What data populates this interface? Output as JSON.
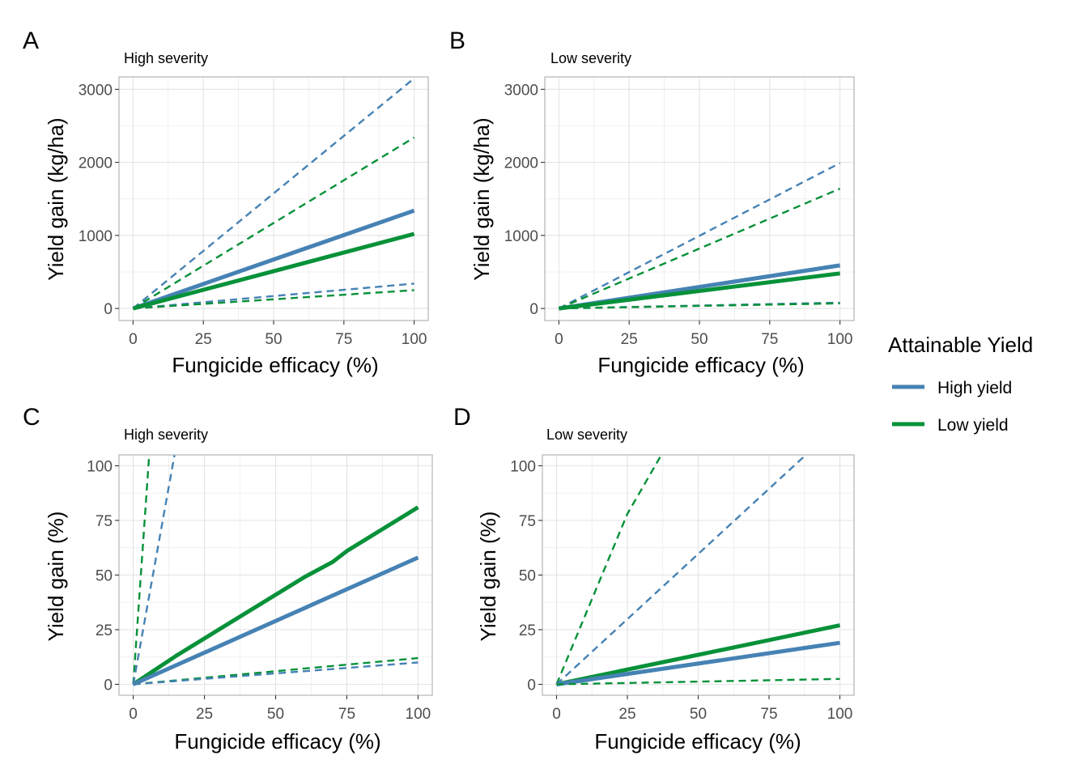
{
  "colors": {
    "high_yield": "#4682b4",
    "low_yield": "#079139",
    "grid": "#e3e3e3",
    "border": "#b3b3b3"
  },
  "legend": {
    "title": "Attainable Yield",
    "items": [
      {
        "label": "High yield",
        "color": "#4682b4"
      },
      {
        "label": "Low yield",
        "color": "#079139"
      }
    ]
  },
  "chart_data": [
    {
      "type": "line",
      "tag": "A",
      "subtitle": "High severity",
      "xlabel": "Fungicide efficacy (%)",
      "ylabel": "Yield gain (kg/ha)",
      "xlim": [
        -5,
        105
      ],
      "ylim": [
        -165,
        3170
      ],
      "xticks": [
        0,
        25,
        50,
        75,
        100
      ],
      "yticks": [
        0,
        1000,
        2000,
        3000
      ],
      "grid": true,
      "series": [
        {
          "group": "High yield",
          "style": "solid",
          "x": [
            0,
            100
          ],
          "y": [
            0,
            1340
          ]
        },
        {
          "group": "Low yield",
          "style": "solid",
          "x": [
            0,
            100
          ],
          "y": [
            0,
            1020
          ]
        },
        {
          "group": "High yield",
          "style": "dashed",
          "x": [
            0,
            100
          ],
          "y": [
            0,
            3150
          ]
        },
        {
          "group": "Low yield",
          "style": "dashed",
          "x": [
            0,
            100
          ],
          "y": [
            0,
            2340
          ]
        },
        {
          "group": "High yield",
          "style": "dashed",
          "x": [
            0,
            100
          ],
          "y": [
            0,
            340
          ]
        },
        {
          "group": "Low yield",
          "style": "dashed",
          "x": [
            0,
            100
          ],
          "y": [
            0,
            250
          ]
        }
      ]
    },
    {
      "type": "line",
      "tag": "B",
      "subtitle": "Low severity",
      "xlabel": "Fungicide efficacy (%)",
      "ylabel": "Yield gain (kg/ha)",
      "xlim": [
        -5,
        105
      ],
      "ylim": [
        -165,
        3170
      ],
      "xticks": [
        0,
        25,
        50,
        75,
        100
      ],
      "yticks": [
        0,
        1000,
        2000,
        3000
      ],
      "grid": true,
      "series": [
        {
          "group": "High yield",
          "style": "solid",
          "x": [
            0,
            100
          ],
          "y": [
            0,
            590
          ]
        },
        {
          "group": "Low yield",
          "style": "solid",
          "x": [
            0,
            100
          ],
          "y": [
            0,
            480
          ]
        },
        {
          "group": "High yield",
          "style": "dashed",
          "x": [
            0,
            100
          ],
          "y": [
            0,
            1990
          ]
        },
        {
          "group": "Low yield",
          "style": "dashed",
          "x": [
            0,
            100
          ],
          "y": [
            0,
            1640
          ]
        },
        {
          "group": "High yield",
          "style": "dashed",
          "x": [
            0,
            100
          ],
          "y": [
            0,
            80
          ]
        },
        {
          "group": "Low yield",
          "style": "dashed",
          "x": [
            0,
            100
          ],
          "y": [
            0,
            70
          ]
        }
      ]
    },
    {
      "type": "line",
      "tag": "C",
      "subtitle": "High severity",
      "xlabel": "Fungicide efficacy (%)",
      "ylabel": "Yield gain (%)",
      "xlim": [
        -5,
        105
      ],
      "ylim": [
        -5,
        105
      ],
      "xticks": [
        0,
        25,
        50,
        75,
        100
      ],
      "yticks": [
        0,
        25,
        50,
        75,
        100
      ],
      "grid": true,
      "series": [
        {
          "group": "Low yield",
          "style": "solid",
          "x": [
            0,
            15,
            30,
            45,
            60,
            70,
            75,
            100
          ],
          "y": [
            0,
            13,
            25,
            37,
            49,
            56,
            61,
            81
          ]
        },
        {
          "group": "High yield",
          "style": "solid",
          "x": [
            0,
            100
          ],
          "y": [
            0,
            58
          ]
        },
        {
          "group": "Low yield",
          "style": "dashed",
          "x": [
            0,
            5.6
          ],
          "y": [
            0,
            105
          ]
        },
        {
          "group": "High yield",
          "style": "dashed",
          "x": [
            0,
            14.5
          ],
          "y": [
            0,
            105
          ]
        },
        {
          "group": "Low yield",
          "style": "dashed",
          "x": [
            0,
            100
          ],
          "y": [
            0,
            12
          ]
        },
        {
          "group": "High yield",
          "style": "dashed",
          "x": [
            0,
            100
          ],
          "y": [
            0,
            10
          ]
        }
      ]
    },
    {
      "type": "line",
      "tag": "D",
      "subtitle": "Low severity",
      "xlabel": "Fungicide efficacy (%)",
      "ylabel": "Yield gain (%)",
      "xlim": [
        -5,
        105
      ],
      "ylim": [
        -5,
        105
      ],
      "xticks": [
        0,
        25,
        50,
        75,
        100
      ],
      "yticks": [
        0,
        25,
        50,
        75,
        100
      ],
      "grid": true,
      "series": [
        {
          "group": "Low yield",
          "style": "solid",
          "x": [
            0,
            100
          ],
          "y": [
            0,
            27
          ]
        },
        {
          "group": "High yield",
          "style": "solid",
          "x": [
            0,
            100
          ],
          "y": [
            0,
            19
          ]
        },
        {
          "group": "Low yield",
          "style": "dashed",
          "x": [
            0,
            25,
            37
          ],
          "y": [
            0,
            78,
            105
          ]
        },
        {
          "group": "High yield",
          "style": "dashed",
          "x": [
            0,
            88
          ],
          "y": [
            0,
            105
          ]
        },
        {
          "group": "Low yield",
          "style": "dashed",
          "x": [
            0,
            100
          ],
          "y": [
            0,
            2.5
          ]
        }
      ]
    }
  ]
}
